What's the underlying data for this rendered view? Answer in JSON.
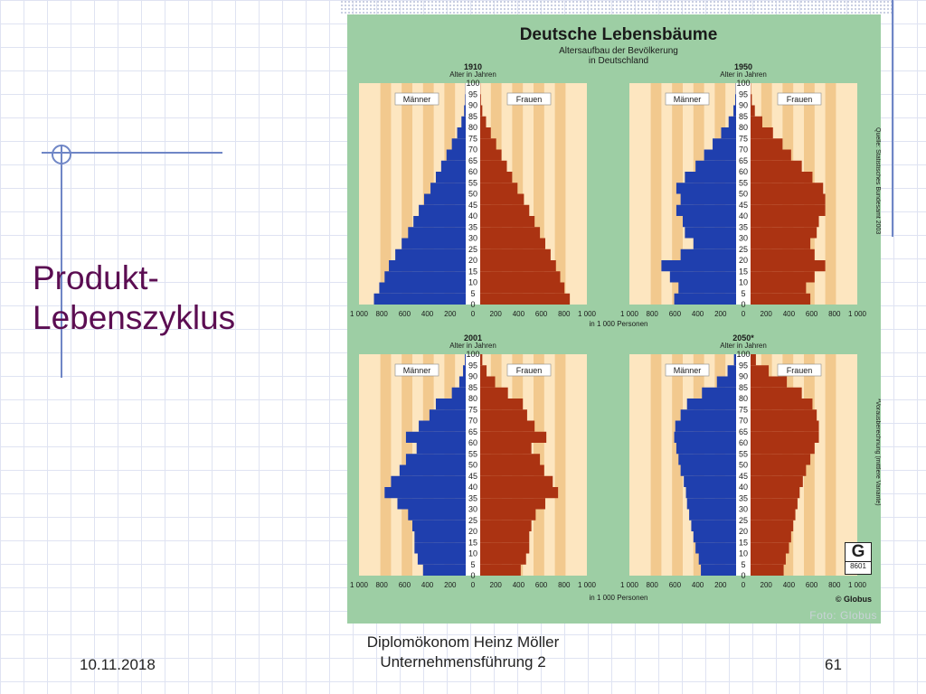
{
  "slide": {
    "title_lines": [
      "Produkt-",
      "Lebenszyklus"
    ],
    "footer_date": "10.11.2018",
    "footer_author": "Diplomökonom Heinz Möller",
    "footer_subject": "Unternehmensführung 2",
    "page_number": "61"
  },
  "poster": {
    "title": "Deutsche Lebensbäume",
    "subtitle_line1": "Altersaufbau der Bevölkerung",
    "subtitle_line2": "in Deutschland",
    "x_unit_label": "in 1 000 Personen",
    "source_top": "Quelle: Statistisches Bundesamt 2003",
    "source_bottom": "*Vorausberechnung (mittlere Variante)",
    "globus_logo": "© Globus",
    "globus_letter": "G",
    "globus_code": "8601",
    "photo_credit": "Foto: Globus",
    "colors": {
      "background": "#9dcea4",
      "panel": "#fde6c0",
      "stripe": "#f2c98e",
      "male": "#1f3fae",
      "female": "#ab3312"
    }
  },
  "chart_data": [
    {
      "type": "bar",
      "orientation": "population-pyramid",
      "title": "1910",
      "ylabel": "Alter in Jahren",
      "xlabel": "in 1 000 Personen",
      "x_ticks": [
        "1 000",
        "800",
        "600",
        "400",
        "200",
        "0",
        "200",
        "400",
        "600",
        "800",
        "1 000"
      ],
      "y_ticks": [
        "0",
        "5",
        "10",
        "15",
        "20",
        "25",
        "30",
        "35",
        "40",
        "45",
        "50",
        "55",
        "60",
        "65",
        "70",
        "75",
        "80",
        "85",
        "90",
        "95",
        "100"
      ],
      "xlim": [
        0,
        1000
      ],
      "ylim": [
        0,
        100
      ],
      "legend": [
        "Männer",
        "Frauen"
      ],
      "age": [
        0,
        5,
        10,
        15,
        20,
        25,
        30,
        35,
        40,
        45,
        50,
        55,
        60,
        65,
        70,
        75,
        80,
        85,
        90,
        95,
        100
      ],
      "series": [
        {
          "name": "Männer",
          "values": [
            860,
            810,
            760,
            720,
            660,
            600,
            540,
            490,
            440,
            390,
            330,
            280,
            230,
            180,
            130,
            80,
            40,
            15,
            5,
            2,
            0
          ]
        },
        {
          "name": "Frauen",
          "values": [
            840,
            790,
            750,
            710,
            660,
            610,
            560,
            510,
            460,
            410,
            350,
            300,
            250,
            200,
            150,
            100,
            55,
            20,
            7,
            2,
            0
          ]
        }
      ]
    },
    {
      "type": "bar",
      "orientation": "population-pyramid",
      "title": "1950",
      "ylabel": "Alter in Jahren",
      "xlabel": "in 1 000 Personen",
      "x_ticks": [
        "1 000",
        "800",
        "600",
        "400",
        "200",
        "0",
        "200",
        "400",
        "600",
        "800",
        "1 000"
      ],
      "y_ticks": [
        "0",
        "5",
        "10",
        "15",
        "20",
        "25",
        "30",
        "35",
        "40",
        "45",
        "50",
        "55",
        "60",
        "65",
        "70",
        "75",
        "80",
        "85",
        "90",
        "95",
        "100"
      ],
      "xlim": [
        0,
        1000
      ],
      "ylim": [
        0,
        100
      ],
      "legend": [
        "Männer",
        "Frauen"
      ],
      "age": [
        0,
        5,
        10,
        15,
        20,
        25,
        30,
        35,
        40,
        45,
        50,
        55,
        60,
        65,
        70,
        75,
        80,
        85,
        90,
        95,
        100
      ],
      "series": [
        {
          "name": "Männer",
          "values": [
            580,
            540,
            620,
            700,
            520,
            400,
            480,
            500,
            560,
            520,
            560,
            480,
            380,
            300,
            220,
            140,
            70,
            25,
            8,
            3,
            0
          ]
        },
        {
          "name": "Frauen",
          "values": [
            560,
            520,
            600,
            700,
            600,
            560,
            620,
            640,
            700,
            700,
            680,
            580,
            480,
            380,
            300,
            210,
            110,
            40,
            12,
            3,
            0
          ]
        }
      ]
    },
    {
      "type": "bar",
      "orientation": "population-pyramid",
      "title": "2001",
      "ylabel": "Alter in Jahren",
      "xlabel": "in 1 000 Personen",
      "x_ticks": [
        "1 000",
        "800",
        "600",
        "400",
        "200",
        "0",
        "200",
        "400",
        "600",
        "800",
        "1 000"
      ],
      "y_ticks": [
        "0",
        "5",
        "10",
        "15",
        "20",
        "25",
        "30",
        "35",
        "40",
        "45",
        "50",
        "55",
        "60",
        "65",
        "70",
        "75",
        "80",
        "85",
        "90",
        "95",
        "100"
      ],
      "xlim": [
        0,
        1000
      ],
      "ylim": [
        0,
        100
      ],
      "legend": [
        "Männer",
        "Frauen"
      ],
      "age": [
        0,
        5,
        10,
        15,
        20,
        25,
        30,
        35,
        40,
        45,
        50,
        55,
        60,
        65,
        70,
        75,
        80,
        85,
        90,
        95,
        100
      ],
      "series": [
        {
          "name": "Männer",
          "values": [
            400,
            450,
            480,
            480,
            500,
            540,
            640,
            760,
            700,
            620,
            560,
            460,
            560,
            440,
            340,
            280,
            130,
            60,
            25,
            8,
            0
          ]
        },
        {
          "name": "Frauen",
          "values": [
            380,
            430,
            460,
            460,
            480,
            520,
            610,
            730,
            680,
            600,
            560,
            480,
            620,
            510,
            440,
            400,
            260,
            140,
            60,
            20,
            0
          ]
        }
      ]
    },
    {
      "type": "bar",
      "orientation": "population-pyramid",
      "title": "2050*",
      "ylabel": "Alter in Jahren",
      "xlabel": "in 1 000 Personen",
      "x_ticks": [
        "1 000",
        "800",
        "600",
        "400",
        "200",
        "0",
        "200",
        "400",
        "600",
        "800",
        "1 000"
      ],
      "y_ticks": [
        "0",
        "5",
        "10",
        "15",
        "20",
        "25",
        "30",
        "35",
        "40",
        "45",
        "50",
        "55",
        "60",
        "65",
        "70",
        "75",
        "80",
        "85",
        "90",
        "95",
        "100"
      ],
      "xlim": [
        0,
        1000
      ],
      "ylim": [
        0,
        100
      ],
      "legend": [
        "Männer",
        "Frauen"
      ],
      "age": [
        0,
        5,
        10,
        15,
        20,
        25,
        30,
        35,
        40,
        45,
        50,
        55,
        60,
        65,
        70,
        75,
        80,
        85,
        90,
        95,
        100
      ],
      "series": [
        {
          "name": "Männer",
          "values": [
            330,
            350,
            380,
            400,
            420,
            440,
            460,
            470,
            490,
            520,
            540,
            560,
            580,
            570,
            520,
            460,
            320,
            180,
            80,
            20,
            0
          ]
        },
        {
          "name": "Frauen",
          "values": [
            310,
            330,
            360,
            380,
            400,
            420,
            440,
            460,
            490,
            520,
            560,
            600,
            640,
            640,
            620,
            580,
            480,
            340,
            170,
            50,
            0
          ]
        }
      ]
    }
  ]
}
